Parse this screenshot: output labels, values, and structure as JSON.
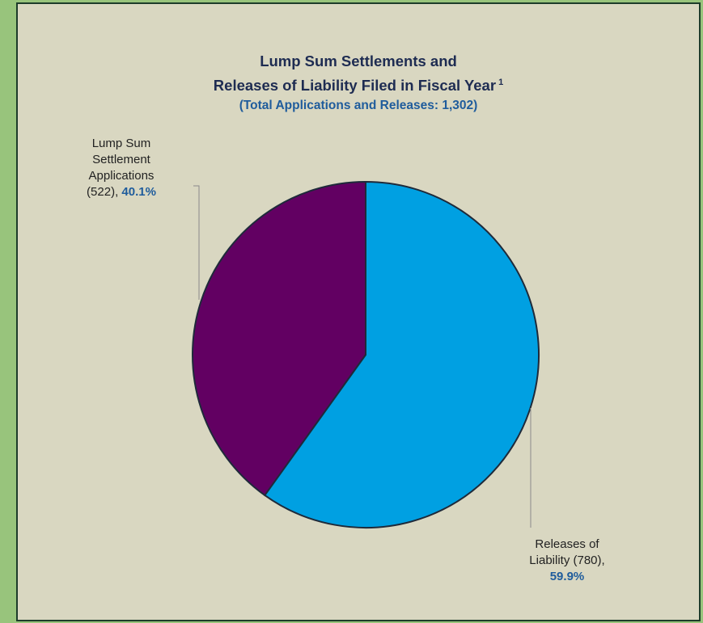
{
  "chart_data": {
    "type": "pie",
    "title_line1": "Lump Sum Settlements and",
    "title_line2": "Releases of Liability Filed in Fiscal Year",
    "title_footnote": "1",
    "subtitle": "(Total Applications and Releases: 1,302)",
    "slices": [
      {
        "label_lines": [
          "Releases of",
          "Liability (780),"
        ],
        "count": 780,
        "percent_text": "59.9%",
        "value": 59.9,
        "color": "#00a0e2"
      },
      {
        "label_lines": [
          "Lump Sum",
          "Settlement",
          "Applications"
        ],
        "count_text": "(522),",
        "count": 522,
        "percent_text": "40.1%",
        "value": 40.1,
        "color": "#620062"
      }
    ],
    "start_angle_deg": 0,
    "direction": "clockwise",
    "legend": "none"
  },
  "colors": {
    "background": "#d9d7c1",
    "outer_frame": "#98c47c",
    "slice_outline": "#1e2a3a",
    "title": "#1e2c52",
    "accent": "#1f5c9c"
  }
}
